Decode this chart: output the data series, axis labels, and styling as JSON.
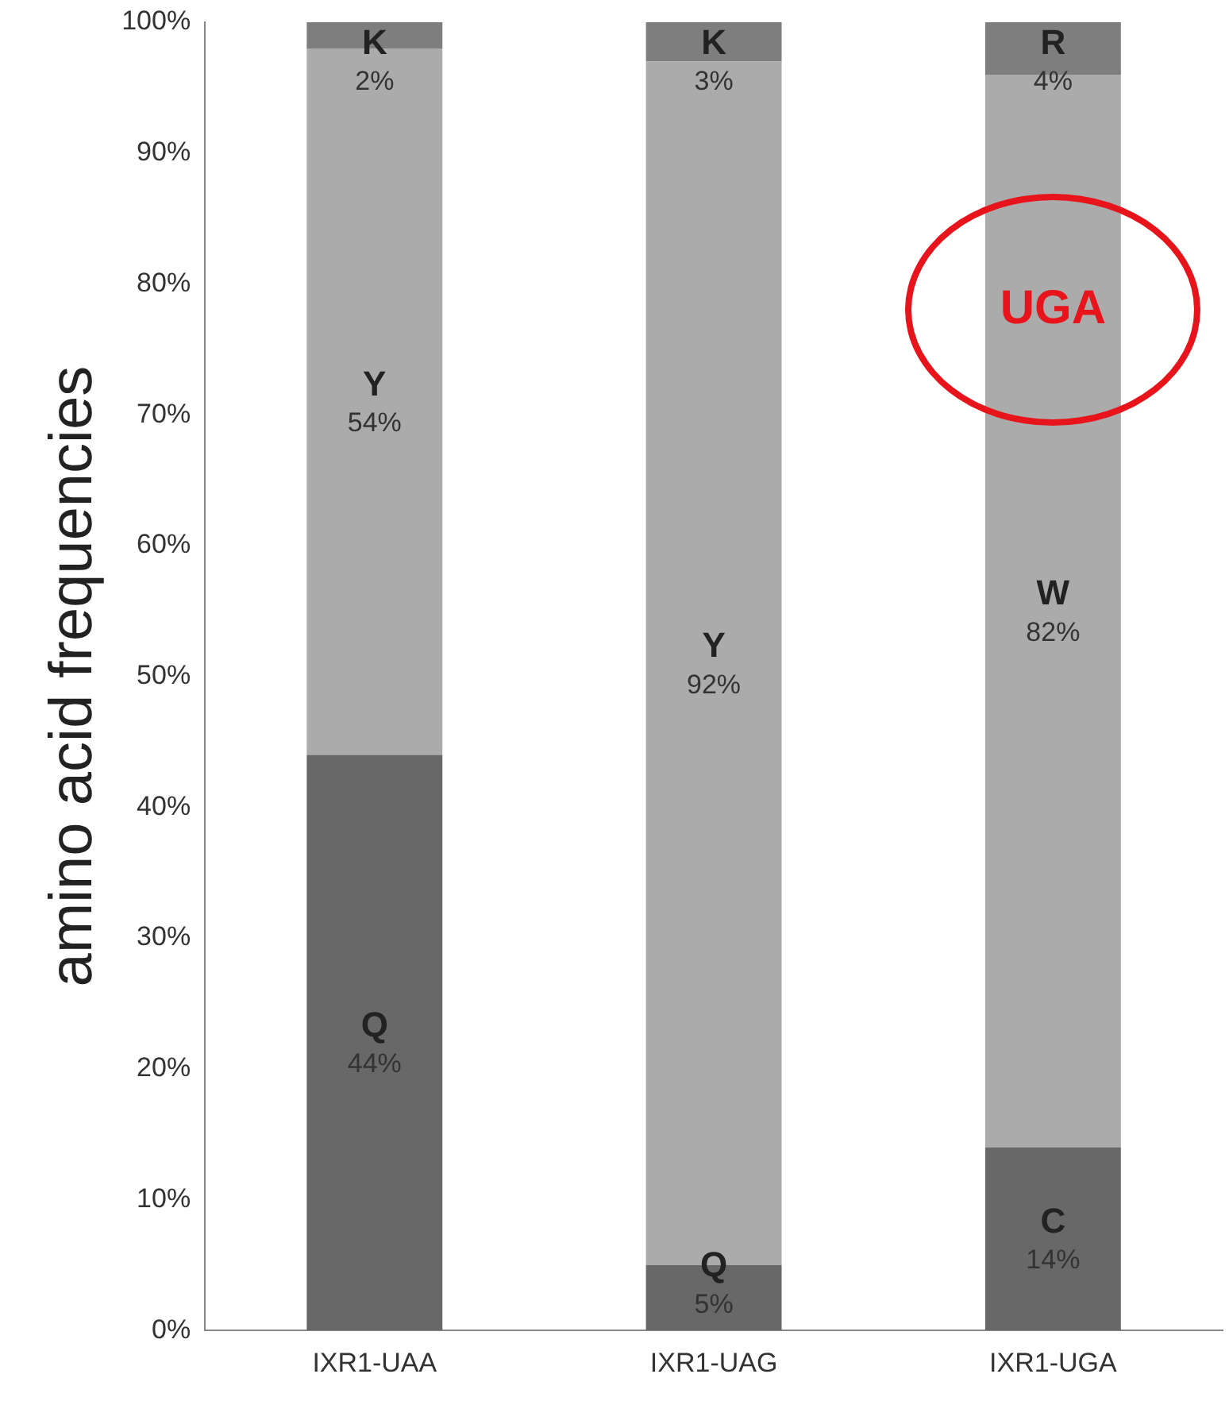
{
  "chart_data": {
    "type": "bar",
    "stacked": true,
    "ylabel": "amino acid frequencies",
    "categories": [
      "IXR1-UAA",
      "IXR1-UAG",
      "IXR1-UGA"
    ],
    "series": [
      {
        "color": "#686868",
        "values": [
          44,
          5,
          14
        ],
        "value_labels": [
          "44%",
          "5%",
          "14%"
        ]
      },
      {
        "color": "#ababab",
        "values": [
          54,
          92,
          82
        ],
        "value_labels": [
          "54%",
          "92%",
          "82%"
        ]
      },
      {
        "color": "#7e7e7e",
        "values": [
          2,
          3,
          4
        ],
        "value_labels": [
          "2%",
          "3%",
          "4%"
        ]
      }
    ],
    "ylim": [
      0,
      100
    ],
    "yticks": [
      {
        "value": 0,
        "label": "0%"
      },
      {
        "value": 10,
        "label": "10%"
      },
      {
        "value": 20,
        "label": "20%"
      },
      {
        "value": 30,
        "label": "30%"
      },
      {
        "value": 40,
        "label": "40%"
      },
      {
        "value": 50,
        "label": "50%"
      },
      {
        "value": 60,
        "label": "60%"
      },
      {
        "value": 70,
        "label": "70%"
      },
      {
        "value": 80,
        "label": "80%"
      },
      {
        "value": 90,
        "label": "90%"
      },
      {
        "value": 100,
        "label": "100%"
      }
    ],
    "grid": false,
    "legend": false,
    "annotations": [
      "Q",
      "Y",
      "K",
      "Q",
      "Y",
      "K",
      "C",
      "W",
      "R",
      "UGA"
    ]
  }
}
